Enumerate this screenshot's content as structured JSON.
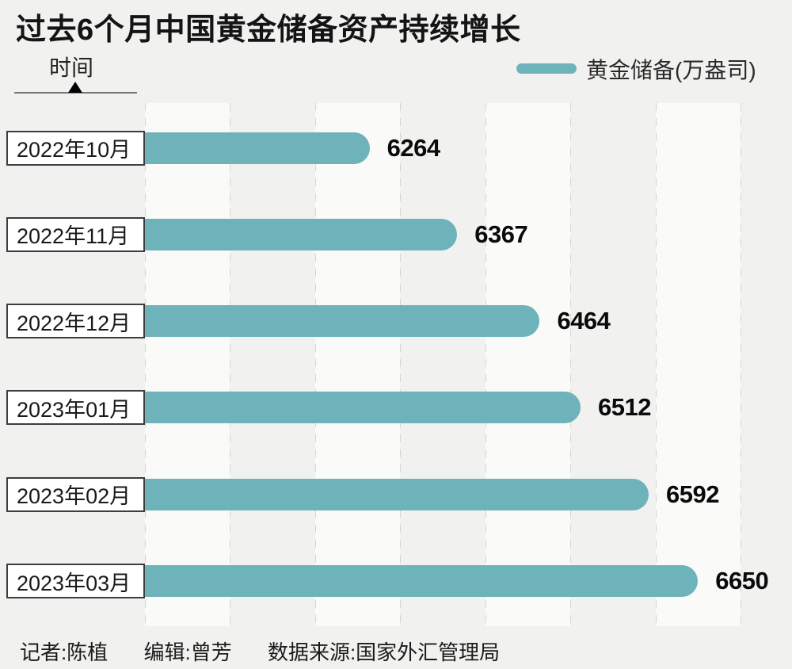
{
  "title": "过去6个月中国黄金储备资产持续增长",
  "y_axis": {
    "label": "时间"
  },
  "legend": {
    "label": "黄金储备(万盎司)"
  },
  "footer": {
    "segments": [
      "记者:陈植",
      "编辑:曾芳",
      "数据来源:国家外汇管理局"
    ]
  },
  "colors": {
    "bar": "#6fb3ba",
    "page_bg": "#f1f1ef",
    "band_bg": "#fafaf9",
    "grid": "#d5d5d2"
  },
  "chart_data": {
    "type": "bar",
    "orientation": "horizontal",
    "title": "过去6个月中国黄金储备资产持续增长",
    "ylabel": "时间",
    "xlabel": "",
    "series_name": "黄金储备",
    "unit": "万盎司",
    "categories": [
      "2022年10月",
      "2022年11月",
      "2022年12月",
      "2023年01月",
      "2023年02月",
      "2023年03月"
    ],
    "values": [
      6264,
      6367,
      6464,
      6512,
      6592,
      6650
    ],
    "xlim": [
      6000,
      6700
    ],
    "gridline_step": 100,
    "grid": "vertical-dashed",
    "legend_position": "top-right",
    "bar_color": "#6fb3ba",
    "value_labels": "outside-end"
  }
}
